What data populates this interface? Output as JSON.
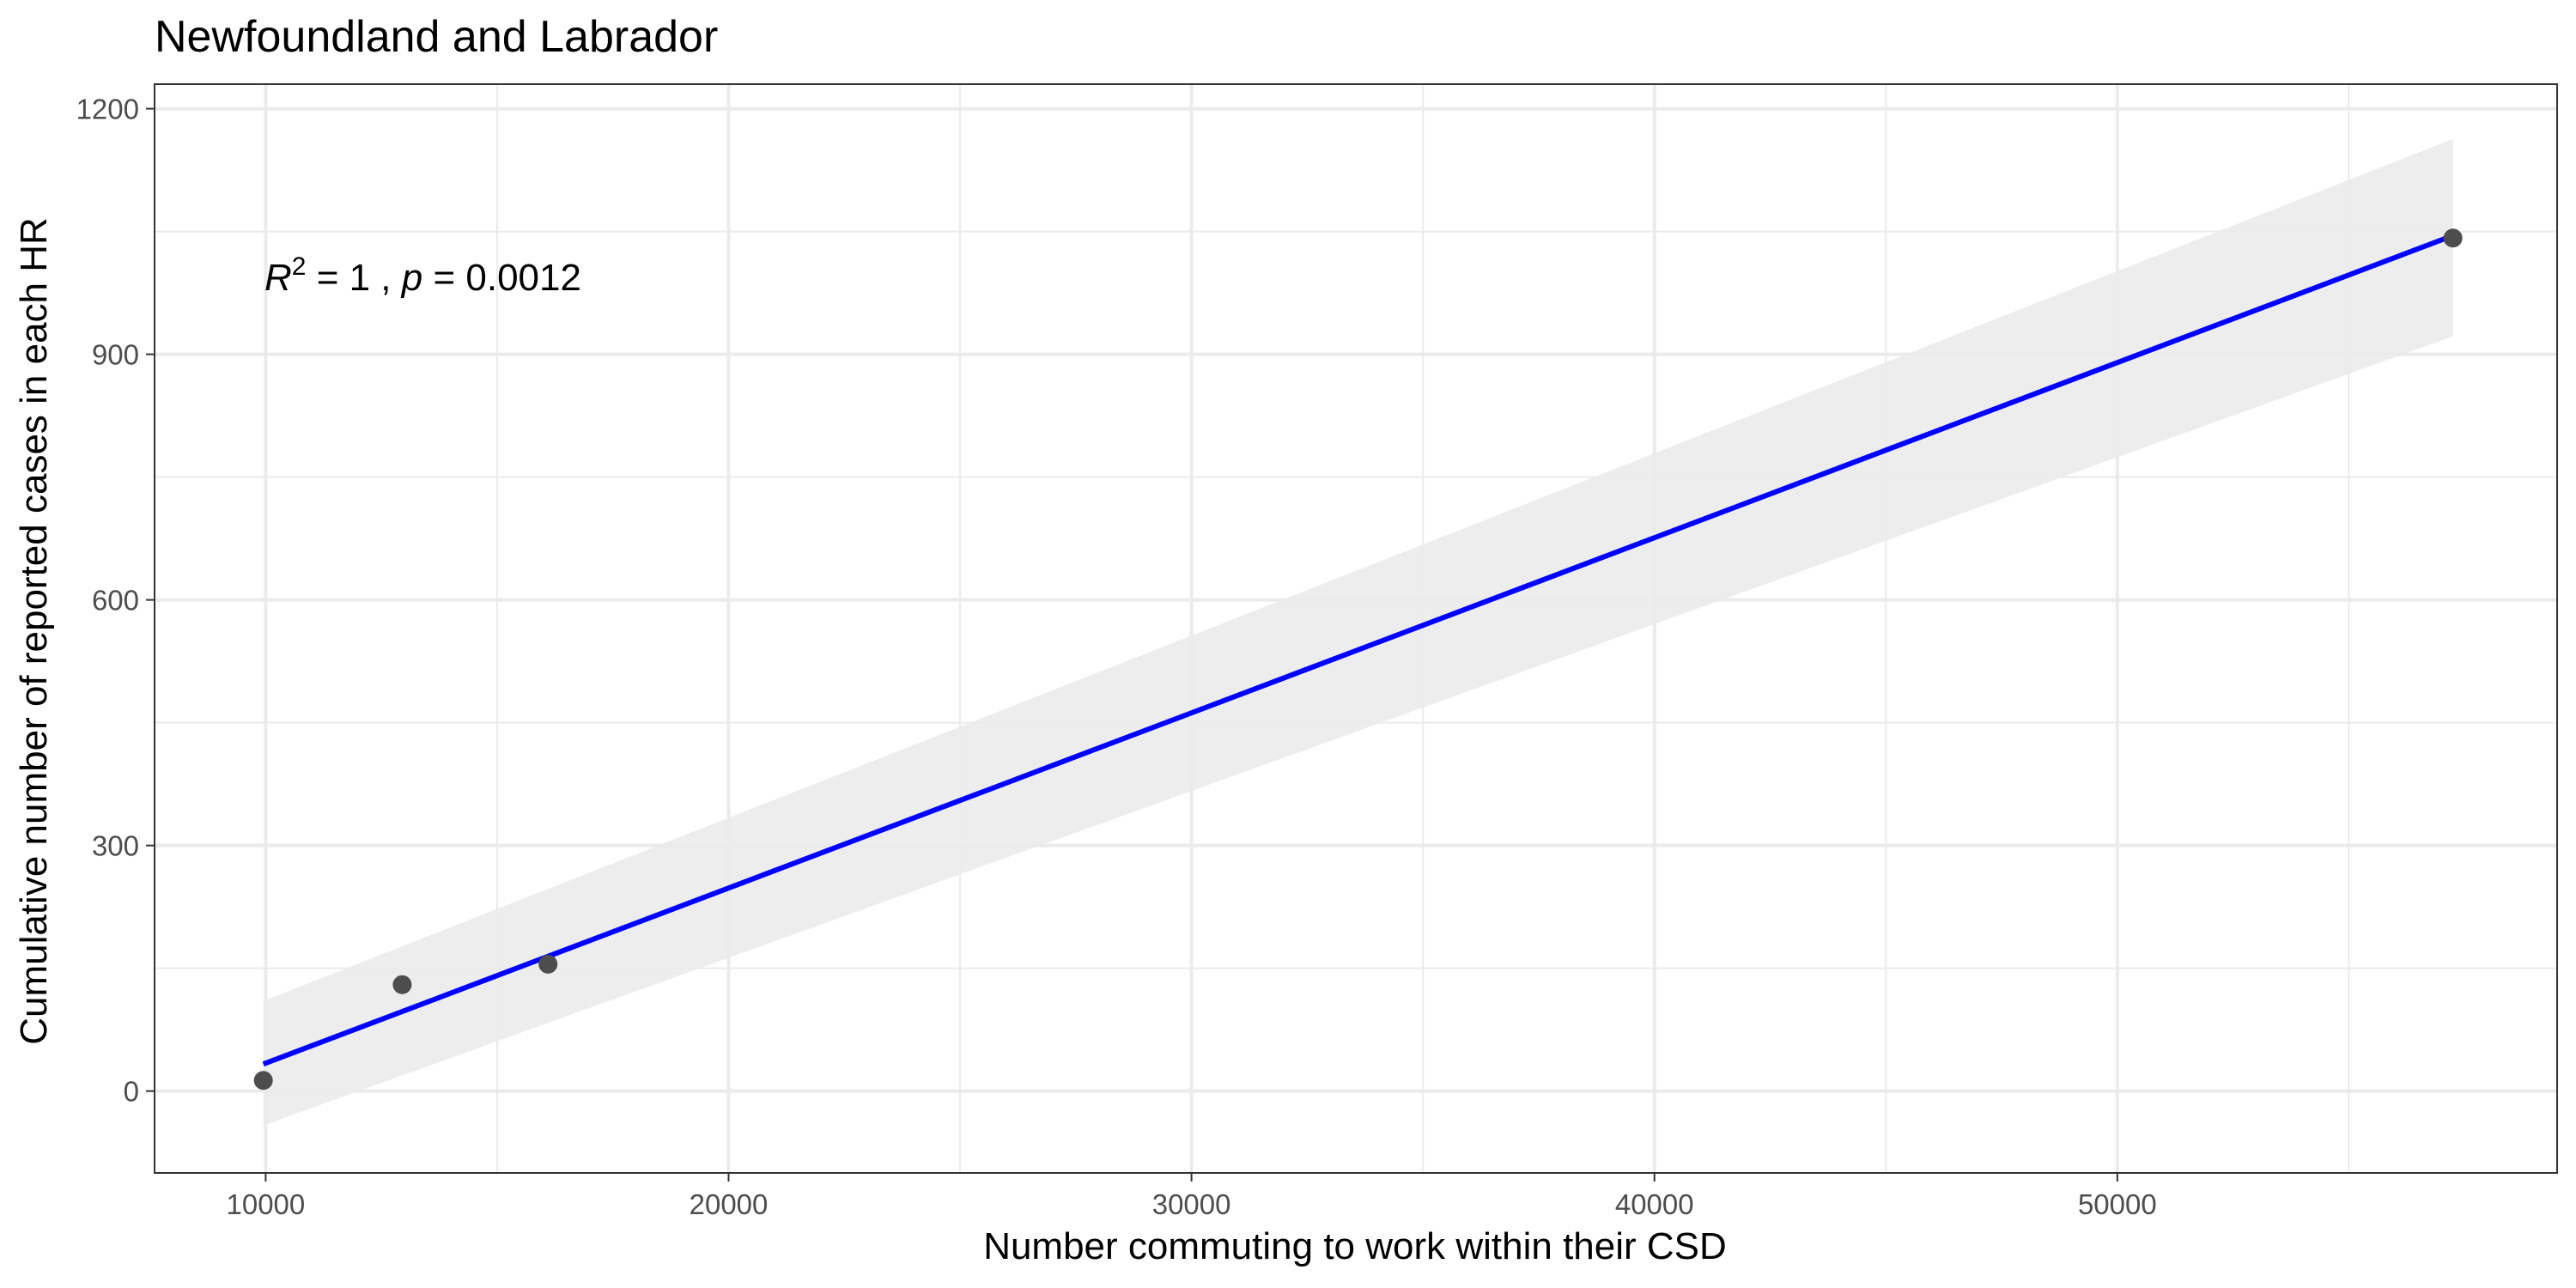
{
  "chart_data": {
    "type": "scatter",
    "title": "Newfoundland and Labrador",
    "xlabel": "Number commuting to work within their CSD",
    "ylabel": "Cumulative number of reported cases in each HR",
    "xlim": [
      7600,
      59500
    ],
    "ylim": [
      -100,
      1230
    ],
    "x_ticks": [
      10000,
      20000,
      30000,
      40000,
      50000
    ],
    "x_tick_labels": [
      "10000",
      "20000",
      "30000",
      "40000",
      "50000"
    ],
    "x_minor_ticks": [
      15000,
      25000,
      35000,
      45000,
      55000
    ],
    "y_ticks": [
      0,
      300,
      600,
      900,
      1200
    ],
    "y_tick_labels": [
      "0",
      "300",
      "600",
      "900",
      "1200"
    ],
    "y_minor_ticks": [
      150,
      450,
      750,
      1050
    ],
    "grid": true,
    "points": [
      {
        "x": 9950,
        "y": 13
      },
      {
        "x": 12950,
        "y": 130
      },
      {
        "x": 16100,
        "y": 155
      },
      {
        "x": 57250,
        "y": 1042
      }
    ],
    "fit": {
      "x": [
        9950,
        57250
      ],
      "y": [
        33,
        1045
      ],
      "ci_low": [
        -42,
        922
      ],
      "ci_high": [
        110,
        1163
      ]
    },
    "annotation": {
      "r_symbol": "R",
      "r_exponent": "2",
      "r_rest": " = 1 , ",
      "p_symbol": "p",
      "p_rest": " = 0.0012"
    },
    "colors": {
      "fit_line": "#0000ff",
      "ci_band": "#ebebeb",
      "points": "#4d4d4d",
      "grid": "#ebebeb",
      "panel_border": "#333333"
    }
  }
}
